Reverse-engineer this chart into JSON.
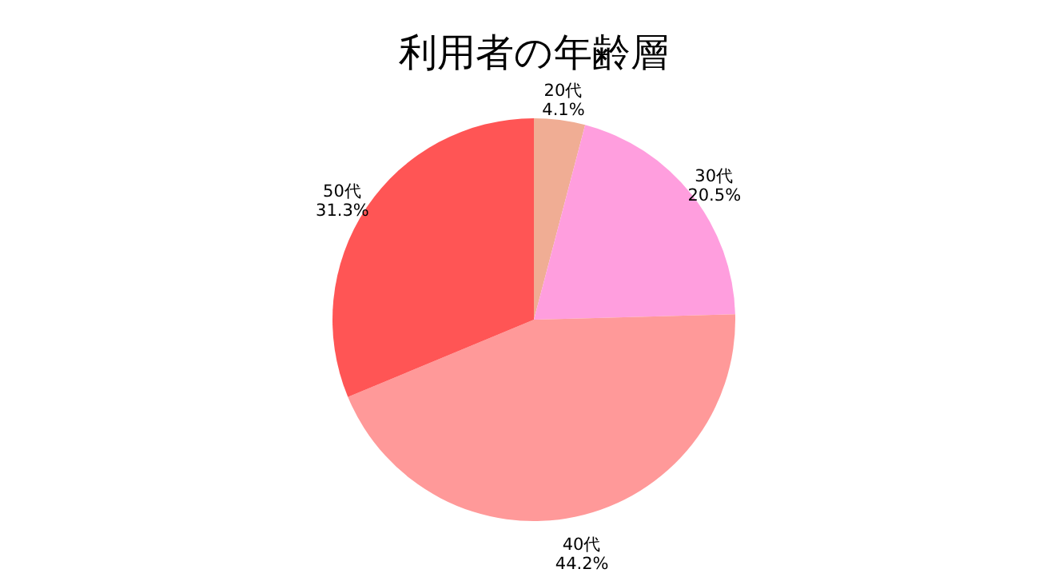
{
  "chart_data": {
    "type": "pie",
    "title": "利用者の年齢層",
    "categories": [
      "20代",
      "30代",
      "40代",
      "50代"
    ],
    "values": [
      4.1,
      20.5,
      44.2,
      31.3
    ],
    "value_labels": [
      "4.1%",
      "20.5%",
      "44.2%",
      "31.3%"
    ],
    "colors": [
      "#f0ad94",
      "#ff9ede",
      "#ff9999",
      "#ff5555"
    ],
    "legend": false
  }
}
